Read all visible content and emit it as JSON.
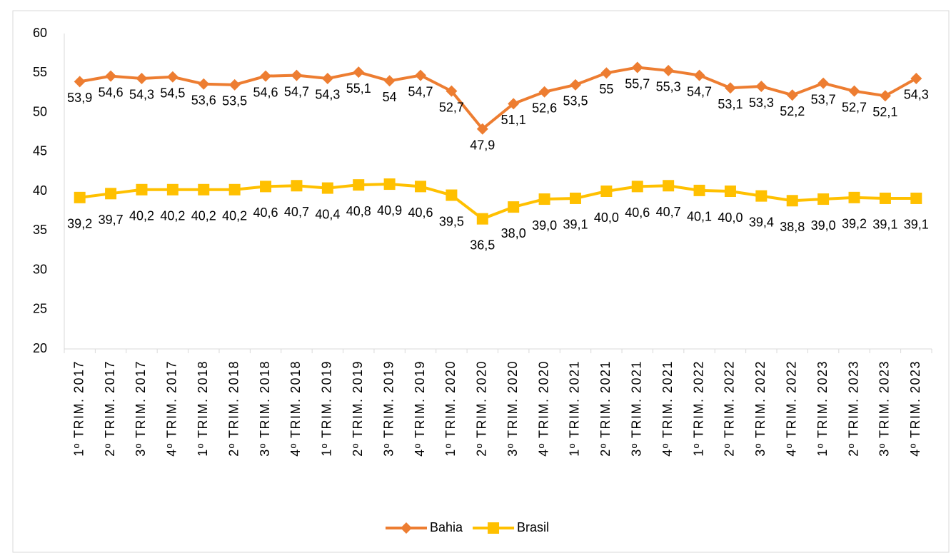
{
  "chart_data": {
    "type": "line",
    "categories": [
      "1º TRIM. 2017",
      "2º TRIM. 2017",
      "3º TRIM. 2017",
      "4º TRIM. 2017",
      "1º TRIM. 2018",
      "2º TRIM. 2018",
      "3º TRIM. 2018",
      "4º TRIM. 2018",
      "1º TRIM. 2019",
      "2º TRIM. 2019",
      "3º TRIM. 2019",
      "4º TRIM. 2019",
      "1º TRIM. 2020",
      "2º TRIM. 2020",
      "3º TRIM. 2020",
      "4º TRIM. 2020",
      "1º TRIM. 2021",
      "2º TRIM. 2021",
      "3º TRIM. 2021",
      "4º TRIM. 2021",
      "1º TRIM. 2022",
      "2º TRIM. 2022",
      "3º TRIM. 2022",
      "4º TRIM. 2022",
      "1º TRIM. 2023",
      "2º TRIM. 2023",
      "3º TRIM. 2023",
      "4º TRIM. 2023"
    ],
    "series": [
      {
        "name": "Bahia",
        "color": "#ED7D31",
        "marker": "diamond",
        "values": [
          53.9,
          54.6,
          54.3,
          54.5,
          53.6,
          53.5,
          54.6,
          54.7,
          54.3,
          55.1,
          54,
          54.7,
          52.7,
          47.9,
          51.1,
          52.6,
          53.5,
          55,
          55.7,
          55.3,
          54.7,
          53.1,
          53.3,
          52.2,
          53.7,
          52.7,
          52.1,
          54.3
        ],
        "value_labels": [
          "53,9",
          "54,6",
          "54,3",
          "54,5",
          "53,6",
          "53,5",
          "54,6",
          "54,7",
          "54,3",
          "55,1",
          "54",
          "54,7",
          "52,7",
          "47,9",
          "51,1",
          "52,6",
          "53,5",
          "55",
          "55,7",
          "55,3",
          "54,7",
          "53,1",
          "53,3",
          "52,2",
          "53,7",
          "52,7",
          "52,1",
          "54,3"
        ]
      },
      {
        "name": "Brasil",
        "color": "#FFC000",
        "marker": "square",
        "values": [
          39.2,
          39.7,
          40.2,
          40.2,
          40.2,
          40.2,
          40.6,
          40.7,
          40.4,
          40.8,
          40.9,
          40.6,
          39.5,
          36.5,
          38.0,
          39.0,
          39.1,
          40.0,
          40.6,
          40.7,
          40.1,
          40.0,
          39.4,
          38.8,
          39.0,
          39.2,
          39.1,
          39.1
        ],
        "value_labels": [
          "39,2",
          "39,7",
          "40,2",
          "40,2",
          "40,2",
          "40,2",
          "40,6",
          "40,7",
          "40,4",
          "40,8",
          "40,9",
          "40,6",
          "39,5",
          "36,5",
          "38,0",
          "39,0",
          "39,1",
          "40,0",
          "40,6",
          "40,7",
          "40,1",
          "40,0",
          "39,4",
          "38,8",
          "39,0",
          "39,2",
          "39,1",
          "39,1"
        ]
      }
    ],
    "ylim": [
      20,
      60
    ],
    "yticks": [
      20,
      25,
      30,
      35,
      40,
      45,
      50,
      55,
      60
    ],
    "legend": "bottom"
  }
}
